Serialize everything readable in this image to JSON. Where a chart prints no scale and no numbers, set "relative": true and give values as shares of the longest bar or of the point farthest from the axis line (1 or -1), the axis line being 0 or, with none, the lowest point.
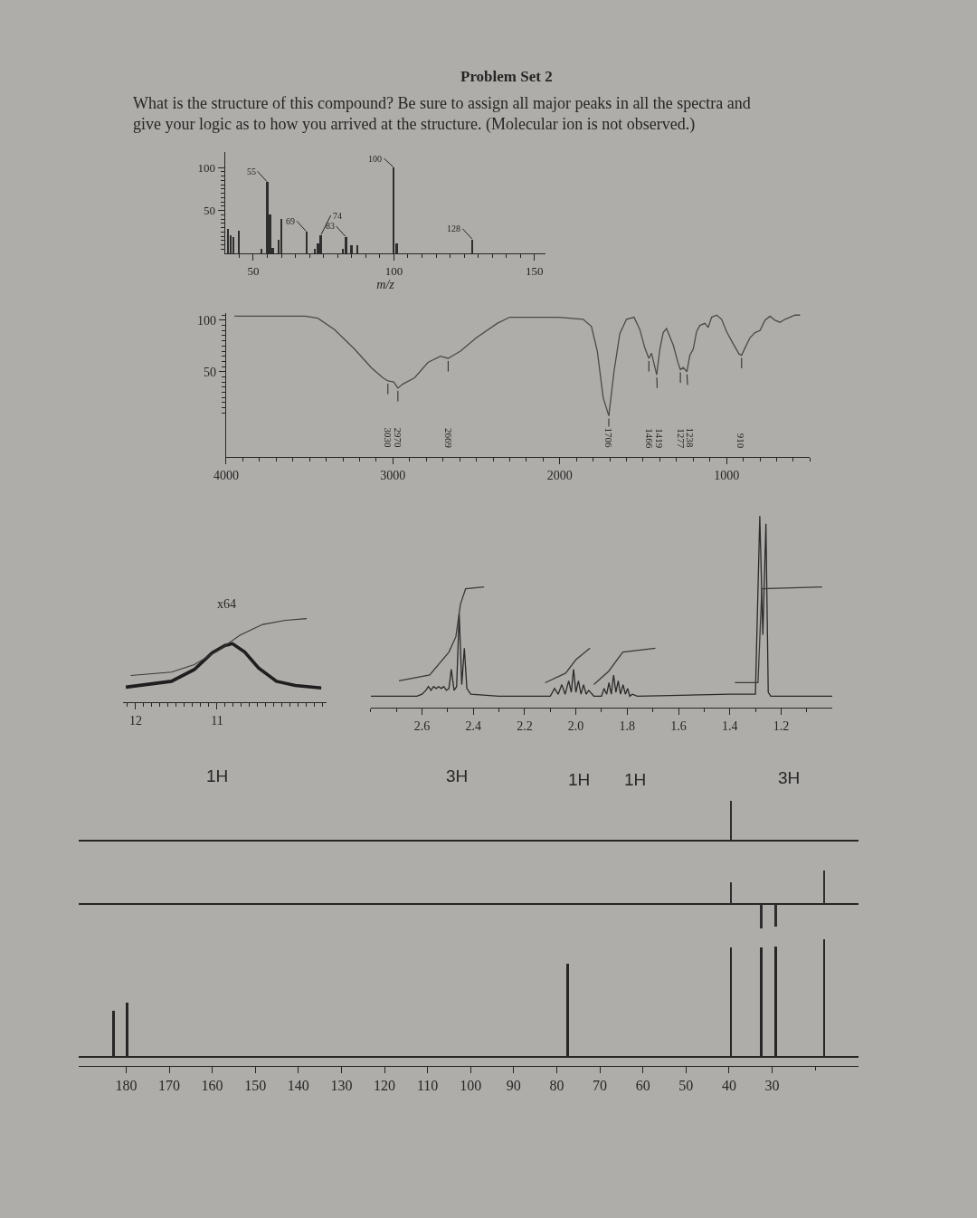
{
  "chart_data": [
    {
      "type": "bar",
      "title": "Problem Set 2",
      "subtitle": "What is the structure of this compound? Be sure to assign all major peaks in all the spectra and give your logic as to how you arrived at the structure. (Molecular ion is not observed.)",
      "xlabel": "m/z",
      "x": [
        41,
        42,
        43,
        45,
        53,
        55,
        56,
        57,
        59,
        60,
        69,
        72,
        73,
        74,
        82,
        83,
        85,
        87,
        100,
        101,
        128
      ],
      "values": [
        28,
        21,
        19,
        26,
        5,
        83,
        45,
        6,
        16,
        40,
        25,
        5,
        12,
        21,
        5,
        19,
        10,
        10,
        100,
        12,
        16
      ],
      "color": "#2e2e2e",
      "xlim": [
        40,
        154
      ],
      "xticks": [
        {
          "value": 45,
          "label": null
        },
        50,
        {
          "value": 55,
          "label": null
        },
        {
          "value": 60,
          "label": null
        },
        {
          "value": 65,
          "label": null
        },
        {
          "value": 70,
          "label": null
        },
        {
          "value": 75,
          "label": null
        },
        {
          "value": 80,
          "label": null
        },
        {
          "value": 85,
          "label": null
        },
        {
          "value": 90,
          "label": null
        },
        {
          "value": 95,
          "label": null
        },
        100,
        {
          "value": 105,
          "label": null
        },
        {
          "value": 110,
          "label": null
        },
        {
          "value": 115,
          "label": null
        },
        {
          "value": 120,
          "label": null
        },
        {
          "value": 125,
          "label": null
        },
        {
          "value": 130,
          "label": null
        },
        {
          "value": 135,
          "label": null
        },
        {
          "value": 140,
          "label": null
        },
        {
          "value": 145,
          "label": null
        },
        150
      ],
      "ylim": [
        0,
        118
      ],
      "yticks": [
        {
          "value": 5,
          "label": null
        },
        {
          "value": 10,
          "label": null
        },
        {
          "value": 15,
          "label": null
        },
        {
          "value": 20,
          "label": null
        },
        {
          "value": 25,
          "label": null
        },
        {
          "value": 30,
          "label": null
        },
        {
          "value": 35,
          "label": null
        },
        {
          "value": 40,
          "label": null
        },
        {
          "value": 45,
          "label": null
        },
        50,
        {
          "value": 55,
          "label": null
        },
        {
          "value": 60,
          "label": null
        },
        {
          "value": 65,
          "label": null
        },
        {
          "value": 70,
          "label": null
        },
        {
          "value": 75,
          "label": null
        },
        {
          "value": 80,
          "label": null
        },
        {
          "value": 85,
          "label": null
        },
        {
          "value": 90,
          "label": null
        },
        {
          "value": 95,
          "label": null
        },
        100
      ],
      "annotations": [
        {
          "text": "55",
          "x": 55,
          "y": 83
        },
        {
          "text": "69",
          "x": 69,
          "y": 25
        },
        {
          "text": "74",
          "x": 74,
          "y": 21
        },
        {
          "text": "83",
          "x": 83,
          "y": 19
        },
        {
          "text": "100",
          "x": 100,
          "y": 100
        },
        {
          "text": "128",
          "x": 128,
          "y": 16
        }
      ]
    },
    {
      "type": "line",
      "x": [
        3950,
        3700,
        3525,
        3450,
        3350,
        3230,
        3130,
        3060,
        3030,
        2995,
        2970,
        2940,
        2870,
        2790,
        2715,
        2669,
        2595,
        2500,
        2375,
        2300,
        2010,
        1860,
        1810,
        1775,
        1740,
        1706,
        1675,
        1640,
        1600,
        1555,
        1520,
        1490,
        1466,
        1450,
        1419,
        1400,
        1380,
        1360,
        1320,
        1290,
        1277,
        1260,
        1238,
        1220,
        1200,
        1180,
        1160,
        1130,
        1110,
        1090,
        1060,
        1030,
        1000,
        960,
        925,
        910,
        890,
        860,
        830,
        800,
        770,
        740,
        710,
        680,
        650,
        620,
        590,
        560
      ],
      "values": [
        104,
        104,
        104,
        102,
        91,
        72,
        54,
        44,
        41,
        40,
        34,
        38,
        44,
        59,
        65,
        63,
        70,
        83,
        97,
        103,
        103,
        101,
        94,
        70,
        25,
        7,
        50,
        87,
        101,
        103,
        91,
        73,
        63,
        68,
        47,
        72,
        88,
        92,
        76,
        58,
        52,
        54,
        50,
        66,
        72,
        89,
        95,
        97,
        93,
        103,
        105,
        101,
        89,
        77,
        67,
        66,
        73,
        83,
        88,
        90,
        100,
        104,
        100,
        98,
        101,
        103,
        105,
        105
      ],
      "color": "#4a4a4a",
      "xlim": [
        4000,
        500
      ],
      "xticks": [
        4000,
        {
          "value": 3900,
          "label": null
        },
        {
          "value": 3800,
          "label": null
        },
        {
          "value": 3700,
          "label": null
        },
        {
          "value": 3600,
          "label": null
        },
        {
          "value": 3500,
          "label": null
        },
        {
          "value": 3400,
          "label": null
        },
        {
          "value": 3300,
          "label": null
        },
        {
          "value": 3200,
          "label": null
        },
        {
          "value": 3100,
          "label": null
        },
        3000,
        {
          "value": 2900,
          "label": null
        },
        {
          "value": 2800,
          "label": null
        },
        {
          "value": 2700,
          "label": null
        },
        {
          "value": 2600,
          "label": null
        },
        {
          "value": 2500,
          "label": null
        },
        {
          "value": 2400,
          "label": null
        },
        {
          "value": 2300,
          "label": null
        },
        {
          "value": 2200,
          "label": null
        },
        {
          "value": 2100,
          "label": null
        },
        2000,
        {
          "value": 1900,
          "label": null
        },
        {
          "value": 1800,
          "label": null
        },
        {
          "value": 1700,
          "label": null
        },
        {
          "value": 1600,
          "label": null
        },
        {
          "value": 1500,
          "label": null
        },
        {
          "value": 1400,
          "label": null
        },
        {
          "value": 1300,
          "label": null
        },
        {
          "value": 1200,
          "label": null
        },
        {
          "value": 1100,
          "label": null
        },
        1000,
        {
          "value": 900,
          "label": null
        },
        {
          "value": 800,
          "label": null
        },
        {
          "value": 700,
          "label": null
        },
        {
          "value": 600,
          "label": null
        },
        {
          "value": 500,
          "label": null
        }
      ],
      "ylim": [
        -33,
        107
      ],
      "yticks": [
        {
          "value": 10,
          "label": null
        },
        {
          "value": 15,
          "label": null
        },
        {
          "value": 20,
          "label": null
        },
        {
          "value": 25,
          "label": null
        },
        {
          "value": 30,
          "label": null
        },
        {
          "value": 35,
          "label": null
        },
        {
          "value": 40,
          "label": null
        },
        {
          "value": 45,
          "label": null
        },
        50,
        {
          "value": 55,
          "label": null
        },
        {
          "value": 60,
          "label": null
        },
        {
          "value": 65,
          "label": null
        },
        {
          "value": 70,
          "label": null
        },
        {
          "value": 75,
          "label": null
        },
        {
          "value": 80,
          "label": null
        },
        {
          "value": 85,
          "label": null
        },
        {
          "value": 90,
          "label": null
        },
        {
          "value": 95,
          "label": null
        },
        100,
        {
          "value": 105,
          "label": null
        }
      ],
      "annotations": [
        {
          "text": "3030",
          "x": 3030,
          "y": 41
        },
        {
          "text": "2970",
          "x": 2970,
          "y": 34
        },
        {
          "text": "2669",
          "x": 2669,
          "y": 63
        },
        {
          "text": "1706",
          "x": 1706,
          "y": 7
        },
        {
          "text": "1466",
          "x": 1466,
          "y": 63
        },
        {
          "text": "1419",
          "x": 1419,
          "y": 47
        },
        {
          "text": "1277",
          "x": 1277,
          "y": 52
        },
        {
          "text": "1238",
          "x": 1238,
          "y": 50
        },
        {
          "text": "910",
          "x": 910,
          "y": 66
        }
      ]
    },
    {
      "type": "line",
      "relative": true,
      "tick_labels": "x",
      "xlim": [
        12.15,
        9.65
      ],
      "xticks": [
        {
          "value": 12.1,
          "label": null
        },
        12,
        {
          "value": 11.9,
          "label": null
        },
        {
          "value": 11.8,
          "label": null
        },
        {
          "value": 11.7,
          "label": null
        },
        {
          "value": 11.6,
          "label": null
        },
        {
          "value": 11.5,
          "label": null
        },
        {
          "value": 11.4,
          "label": null
        },
        {
          "value": 11.3,
          "label": null
        },
        {
          "value": 11.2,
          "label": null
        },
        {
          "value": 11.1,
          "label": null
        },
        11,
        {
          "value": 10.9,
          "label": null
        },
        {
          "value": 10.8,
          "label": null
        },
        {
          "value": 10.7,
          "label": null
        },
        {
          "value": 10.6,
          "label": null
        },
        {
          "value": 10.5,
          "label": null
        },
        {
          "value": 10.4,
          "label": null
        },
        {
          "value": 10.3,
          "label": null
        },
        {
          "value": 10.2,
          "label": null
        },
        {
          "value": 10.1,
          "label": null
        },
        {
          "value": 10,
          "label": null
        },
        {
          "value": 9.9,
          "label": null
        },
        {
          "value": 9.8,
          "label": null
        },
        {
          "value": 9.7,
          "label": null
        }
      ],
      "series": [
        {
          "color": "#1e1e1e",
          "x": [
            12.12,
            11.56,
            11.28,
            11.06,
            10.9,
            10.81,
            10.66,
            10.49,
            10.27,
            10.04,
            9.72
          ],
          "values": [
            0.18,
            0.25,
            0.39,
            0.59,
            0.68,
            0.7,
            0.6,
            0.41,
            0.25,
            0.2,
            0.17
          ]
        },
        {
          "color": "#3a3a3a",
          "x": [
            12.06,
            11.56,
            11.28,
            11.0,
            10.72,
            10.44,
            10.16,
            9.9
          ],
          "values": [
            0.32,
            0.36,
            0.45,
            0.61,
            0.8,
            0.93,
            0.98,
            1
          ]
        }
      ],
      "annotations": [
        "x64",
        "1H"
      ]
    },
    {
      "type": "line",
      "relative": true,
      "tick_labels": "x",
      "xlim": [
        2.8,
        1.0
      ],
      "xticks": [
        {
          "value": 2.8,
          "label": null
        },
        {
          "value": 2.7,
          "label": null
        },
        2.6,
        {
          "value": 2.5,
          "label": null
        },
        2.4,
        {
          "value": 2.3,
          "label": null
        },
        2.2,
        {
          "value": 2.1,
          "label": null
        },
        {
          "value": 2.0,
          "label": "2.0"
        },
        {
          "value": 1.9,
          "label": null
        },
        1.8,
        {
          "value": 1.7,
          "label": null
        },
        1.6,
        {
          "value": 1.5,
          "label": null
        },
        1.4,
        {
          "value": 1.3,
          "label": null
        },
        1.2,
        {
          "value": 1.1,
          "label": null
        }
      ],
      "series": [
        {
          "color": "#2a2a2a",
          "x": [
            2.8,
            2.62,
            2.6,
            2.585,
            2.575,
            2.565,
            2.555,
            2.545,
            2.535,
            2.525,
            2.515,
            2.505,
            2.495,
            2.486,
            2.475,
            2.465,
            2.455,
            2.445,
            2.435,
            2.425,
            2.41,
            2.3,
            2.1,
            2.083,
            2.069,
            2.055,
            2.042,
            2.028,
            2.018,
            2.009,
            2.0,
            1.99,
            1.98,
            1.97,
            1.96,
            1.95,
            1.93,
            1.9,
            1.89,
            1.88,
            1.871,
            1.862,
            1.853,
            1.844,
            1.835,
            1.826,
            1.816,
            1.807,
            1.798,
            1.79,
            1.78,
            1.76,
            1.4,
            1.3,
            1.283,
            1.271,
            1.259,
            1.25,
            1.24,
            1.0
          ],
          "values": [
            0.06,
            0.06,
            0.07,
            0.09,
            0.11,
            0.09,
            0.11,
            0.1,
            0.11,
            0.1,
            0.11,
            0.09,
            0.1,
            0.2,
            0.09,
            0.11,
            0.49,
            0.12,
            0.31,
            0.1,
            0.07,
            0.06,
            0.06,
            0.1,
            0.07,
            0.12,
            0.07,
            0.14,
            0.08,
            0.2,
            0.08,
            0.14,
            0.07,
            0.12,
            0.07,
            0.09,
            0.06,
            0.06,
            0.1,
            0.07,
            0.13,
            0.07,
            0.17,
            0.08,
            0.14,
            0.07,
            0.12,
            0.07,
            0.1,
            0.06,
            0.07,
            0.06,
            0.07,
            0.07,
            1,
            0.38,
            0.96,
            0.08,
            0.06,
            0.06
          ]
        },
        {
          "color": "#3a3a3a",
          "x": [
            2.69,
            2.57,
            2.495,
            2.468,
            2.45,
            2.43,
            2.358,
            2.24,
            2.12,
            2.04,
            2.0,
            1.945,
            1.938,
            1.93,
            1.872,
            1.817,
            1.69,
            1.5,
            1.38,
            1.29,
            1.275,
            1.04
          ],
          "values": [
            0.14,
            0.17,
            0.29,
            0.37,
            0.54,
            0.62,
            0.63,
            null,
            0.13,
            0.18,
            0.25,
            0.31,
            null,
            0.12,
            0.19,
            0.29,
            0.31,
            null,
            0.13,
            0.13,
            0.62,
            0.63
          ]
        }
      ],
      "annotations": [
        "3H",
        "1H",
        "1H",
        "3H"
      ]
    },
    {
      "type": "bar",
      "relative": true,
      "tick_labels": false,
      "xlim": [
        191,
        10
      ],
      "x": [
        39.6
      ],
      "values": [
        1
      ],
      "color": "#2e2e2e"
    },
    {
      "type": "bar",
      "relative": true,
      "tick_labels": false,
      "xlim": [
        191,
        10
      ],
      "x": [
        39.6,
        32.6,
        29.2,
        18.0
      ],
      "values": [
        0.63,
        -0.75,
        -0.69,
        1
      ],
      "color": "#2e2e2e"
    },
    {
      "type": "bar",
      "relative": true,
      "tick_labels": "x",
      "xlim": [
        191,
        10
      ],
      "x": [
        183.0,
        179.8,
        77.5,
        39.6,
        32.6,
        29.2,
        18.0
      ],
      "values": [
        0.39,
        0.46,
        0.79,
        0.93,
        0.93,
        0.94,
        1
      ],
      "color": "#262626",
      "xticks": [
        180,
        170,
        160,
        150,
        140,
        130,
        120,
        110,
        100,
        90,
        80,
        70,
        60,
        50,
        40,
        30,
        {
          "value": 20,
          "label": null
        }
      ]
    }
  ]
}
